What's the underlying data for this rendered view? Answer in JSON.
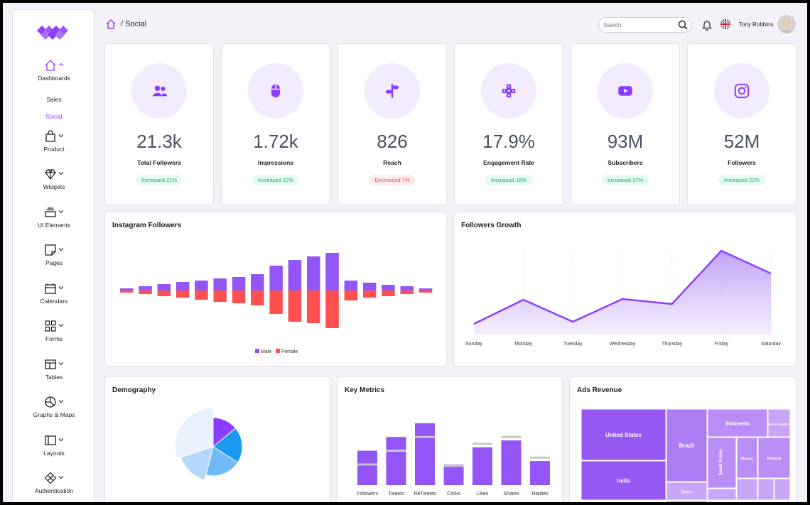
{
  "sidebar": {
    "nav": [
      {
        "label": "Dashboards",
        "icon": "home-icon"
      },
      {
        "label": "Product",
        "icon": "bag-icon"
      },
      {
        "label": "Widgets",
        "icon": "diamond-icon"
      },
      {
        "label": "UI Elements",
        "icon": "layers-icon"
      },
      {
        "label": "Pages",
        "icon": "note-icon"
      },
      {
        "label": "Calendars",
        "icon": "calendar-icon"
      },
      {
        "label": "Forms",
        "icon": "grid-icon"
      },
      {
        "label": "Tables",
        "icon": "table-icon"
      },
      {
        "label": "Graphs & Maps",
        "icon": "pie-icon"
      },
      {
        "label": "Layouts",
        "icon": "layout-icon"
      },
      {
        "label": "Authentication",
        "icon": "puzzle-icon"
      }
    ],
    "sub_items": [
      "Sales",
      "Social"
    ]
  },
  "header": {
    "breadcrumb": "/ Social",
    "search_placeholder": "Search",
    "user_name": "Tony Robbins"
  },
  "stats": [
    {
      "value": "21.3k",
      "label": "Total Followers",
      "badge": "Increased 21%",
      "trend": "up",
      "icon": "users-icon"
    },
    {
      "value": "1.72k",
      "label": "Impressions",
      "badge": "Increased 12%",
      "trend": "up",
      "icon": "mouse-icon"
    },
    {
      "value": "826",
      "label": "Reach",
      "badge": "Decreased 7%",
      "trend": "down",
      "icon": "signpost-icon"
    },
    {
      "value": "17.9%",
      "label": "Engagement Rate",
      "badge": "Increased 18%",
      "trend": "up",
      "icon": "gamepad-icon"
    },
    {
      "value": "93M",
      "label": "Subscribers",
      "badge": "Increased 37%",
      "trend": "up",
      "icon": "youtube-icon"
    },
    {
      "value": "52M",
      "label": "Followers",
      "badge": "Increased 22%",
      "trend": "up",
      "icon": "instagram-icon"
    }
  ],
  "colors": {
    "accent": "#8b3dff",
    "male": "#9355f5",
    "female": "#ff5050"
  },
  "panels": {
    "instagram": "Instagram Followers",
    "growth": "Followers Growth",
    "demography": "Demography",
    "metrics": "Key Metrics",
    "ads": "Ads Revenue"
  },
  "chart_data": [
    {
      "type": "bar",
      "title": "Instagram Followers",
      "series": [
        {
          "name": "Male",
          "values": [
            3,
            6,
            9,
            12,
            14,
            17,
            19,
            23,
            35,
            43,
            48,
            53,
            14,
            11,
            8,
            6,
            3
          ]
        },
        {
          "name": "Female",
          "values": [
            -3,
            -5,
            -8,
            -10,
            -13,
            -16,
            -18,
            -21,
            -33,
            -44,
            -46,
            -53,
            -14,
            -10,
            -8,
            -5,
            -3
          ]
        }
      ],
      "legend": "bottom"
    },
    {
      "type": "area",
      "title": "Followers Growth",
      "categories": [
        "Sunday",
        "Monday",
        "Tuesday",
        "Wednesday",
        "Thursday",
        "Friday",
        "Saturday"
      ],
      "values": [
        15,
        49,
        18,
        50,
        43,
        118,
        86
      ],
      "ylim": [
        0,
        130
      ]
    },
    {
      "type": "pie",
      "title": "Demography",
      "values": [
        14,
        20,
        20,
        16,
        30
      ]
    },
    {
      "type": "bar",
      "title": "Key Metrics",
      "categories": [
        "Followers",
        "Tweets",
        "ReTweets",
        "Clicks",
        "Likes",
        "Shares",
        "Replies"
      ],
      "values": [
        50,
        70,
        90,
        30,
        55,
        65,
        35
      ],
      "markers": [
        30,
        50,
        70,
        28,
        60,
        70,
        40
      ],
      "ylim": [
        0,
        95
      ]
    },
    {
      "type": "treemap",
      "title": "Ads Revenue",
      "items": [
        {
          "name": "United States"
        },
        {
          "name": "India"
        },
        {
          "name": "Brazil"
        },
        {
          "name": "Indonesia"
        },
        {
          "name": "United Kingdom"
        },
        {
          "name": "Saudi Arabia"
        },
        {
          "name": "Mexico"
        },
        {
          "name": "France"
        },
        {
          "name": "Turkey"
        }
      ]
    }
  ]
}
